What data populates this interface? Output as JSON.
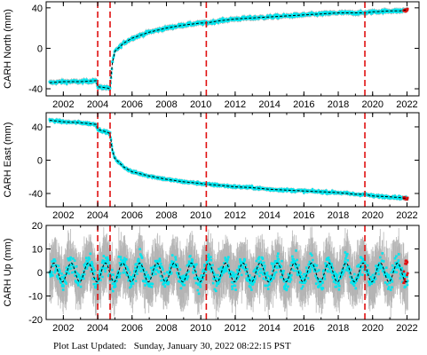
{
  "footer": {
    "label": "Plot Last Updated:",
    "timestamp": "Sunday, January 30, 2022 08:22:15 PST"
  },
  "colors": {
    "data": "#00e5ee",
    "error_bars": "#b5b5b5",
    "model": "#000000",
    "event_lines": "#e01010",
    "recent_points": "#e01010"
  },
  "event_years": [
    2004.0,
    2004.72,
    2010.32,
    2019.55
  ],
  "chart_data": [
    {
      "type": "scatter",
      "ylabel": "CARH North (mm)",
      "xlim": [
        2001.0,
        2022.7
      ],
      "ylim": [
        -47,
        46
      ],
      "yticks": [
        -40,
        0,
        40
      ],
      "xticks": [
        2002,
        2004,
        2006,
        2008,
        2010,
        2012,
        2014,
        2016,
        2018,
        2020,
        2022
      ],
      "x": [
        2001.2,
        2002.0,
        2003.0,
        2003.9,
        2004.0,
        2004.5,
        2004.72,
        2004.85,
        2005.0,
        2005.5,
        2006.0,
        2007.0,
        2008.0,
        2009.0,
        2010.0,
        2010.32,
        2011.0,
        2012.0,
        2013.0,
        2014.0,
        2015.0,
        2016.0,
        2017.0,
        2018.0,
        2019.0,
        2019.55,
        2020.0,
        2021.0,
        2021.6,
        2022.0
      ],
      "y": [
        -34,
        -33,
        -33,
        -32,
        -38,
        -39,
        -40,
        -15,
        -3,
        5,
        10,
        16,
        20,
        23,
        25,
        25,
        27,
        29,
        30,
        31,
        32,
        33,
        34,
        35,
        35,
        35,
        36,
        37,
        37,
        38
      ]
    },
    {
      "type": "scatter",
      "ylabel": "CARH East (mm)",
      "xlim": [
        2001.0,
        2022.7
      ],
      "ylim": [
        -56,
        57
      ],
      "yticks": [
        -40,
        0,
        40
      ],
      "xticks": [
        2002,
        2004,
        2006,
        2008,
        2010,
        2012,
        2014,
        2016,
        2018,
        2020,
        2022
      ],
      "x": [
        2001.2,
        2002.0,
        2003.0,
        2003.9,
        2004.0,
        2004.5,
        2004.72,
        2004.85,
        2005.0,
        2005.5,
        2006.0,
        2007.0,
        2008.0,
        2009.0,
        2010.0,
        2010.32,
        2011.0,
        2012.0,
        2013.0,
        2014.0,
        2015.0,
        2016.0,
        2017.0,
        2018.0,
        2019.0,
        2019.55,
        2020.0,
        2021.0,
        2021.6,
        2022.0
      ],
      "y": [
        48,
        46,
        45,
        43,
        37,
        34,
        32,
        12,
        2,
        -8,
        -14,
        -19,
        -23,
        -26,
        -28,
        -29,
        -30,
        -32,
        -33,
        -35,
        -36,
        -37,
        -38,
        -39,
        -41,
        -41,
        -43,
        -44,
        -45,
        -46
      ]
    },
    {
      "type": "scatter",
      "ylabel": "CARH Up (mm)",
      "xlim": [
        2001.0,
        2022.7
      ],
      "ylim": [
        -20,
        20
      ],
      "yticks": [
        -20,
        -10,
        0,
        10,
        20
      ],
      "xticks": [
        2002,
        2004,
        2006,
        2008,
        2010,
        2012,
        2014,
        2016,
        2018,
        2020,
        2022
      ],
      "seasonal": {
        "mean": 0,
        "amplitude_mm": 4,
        "period_years": 1.0,
        "noise_mm": 3,
        "error_bar_mm": 9
      }
    }
  ]
}
